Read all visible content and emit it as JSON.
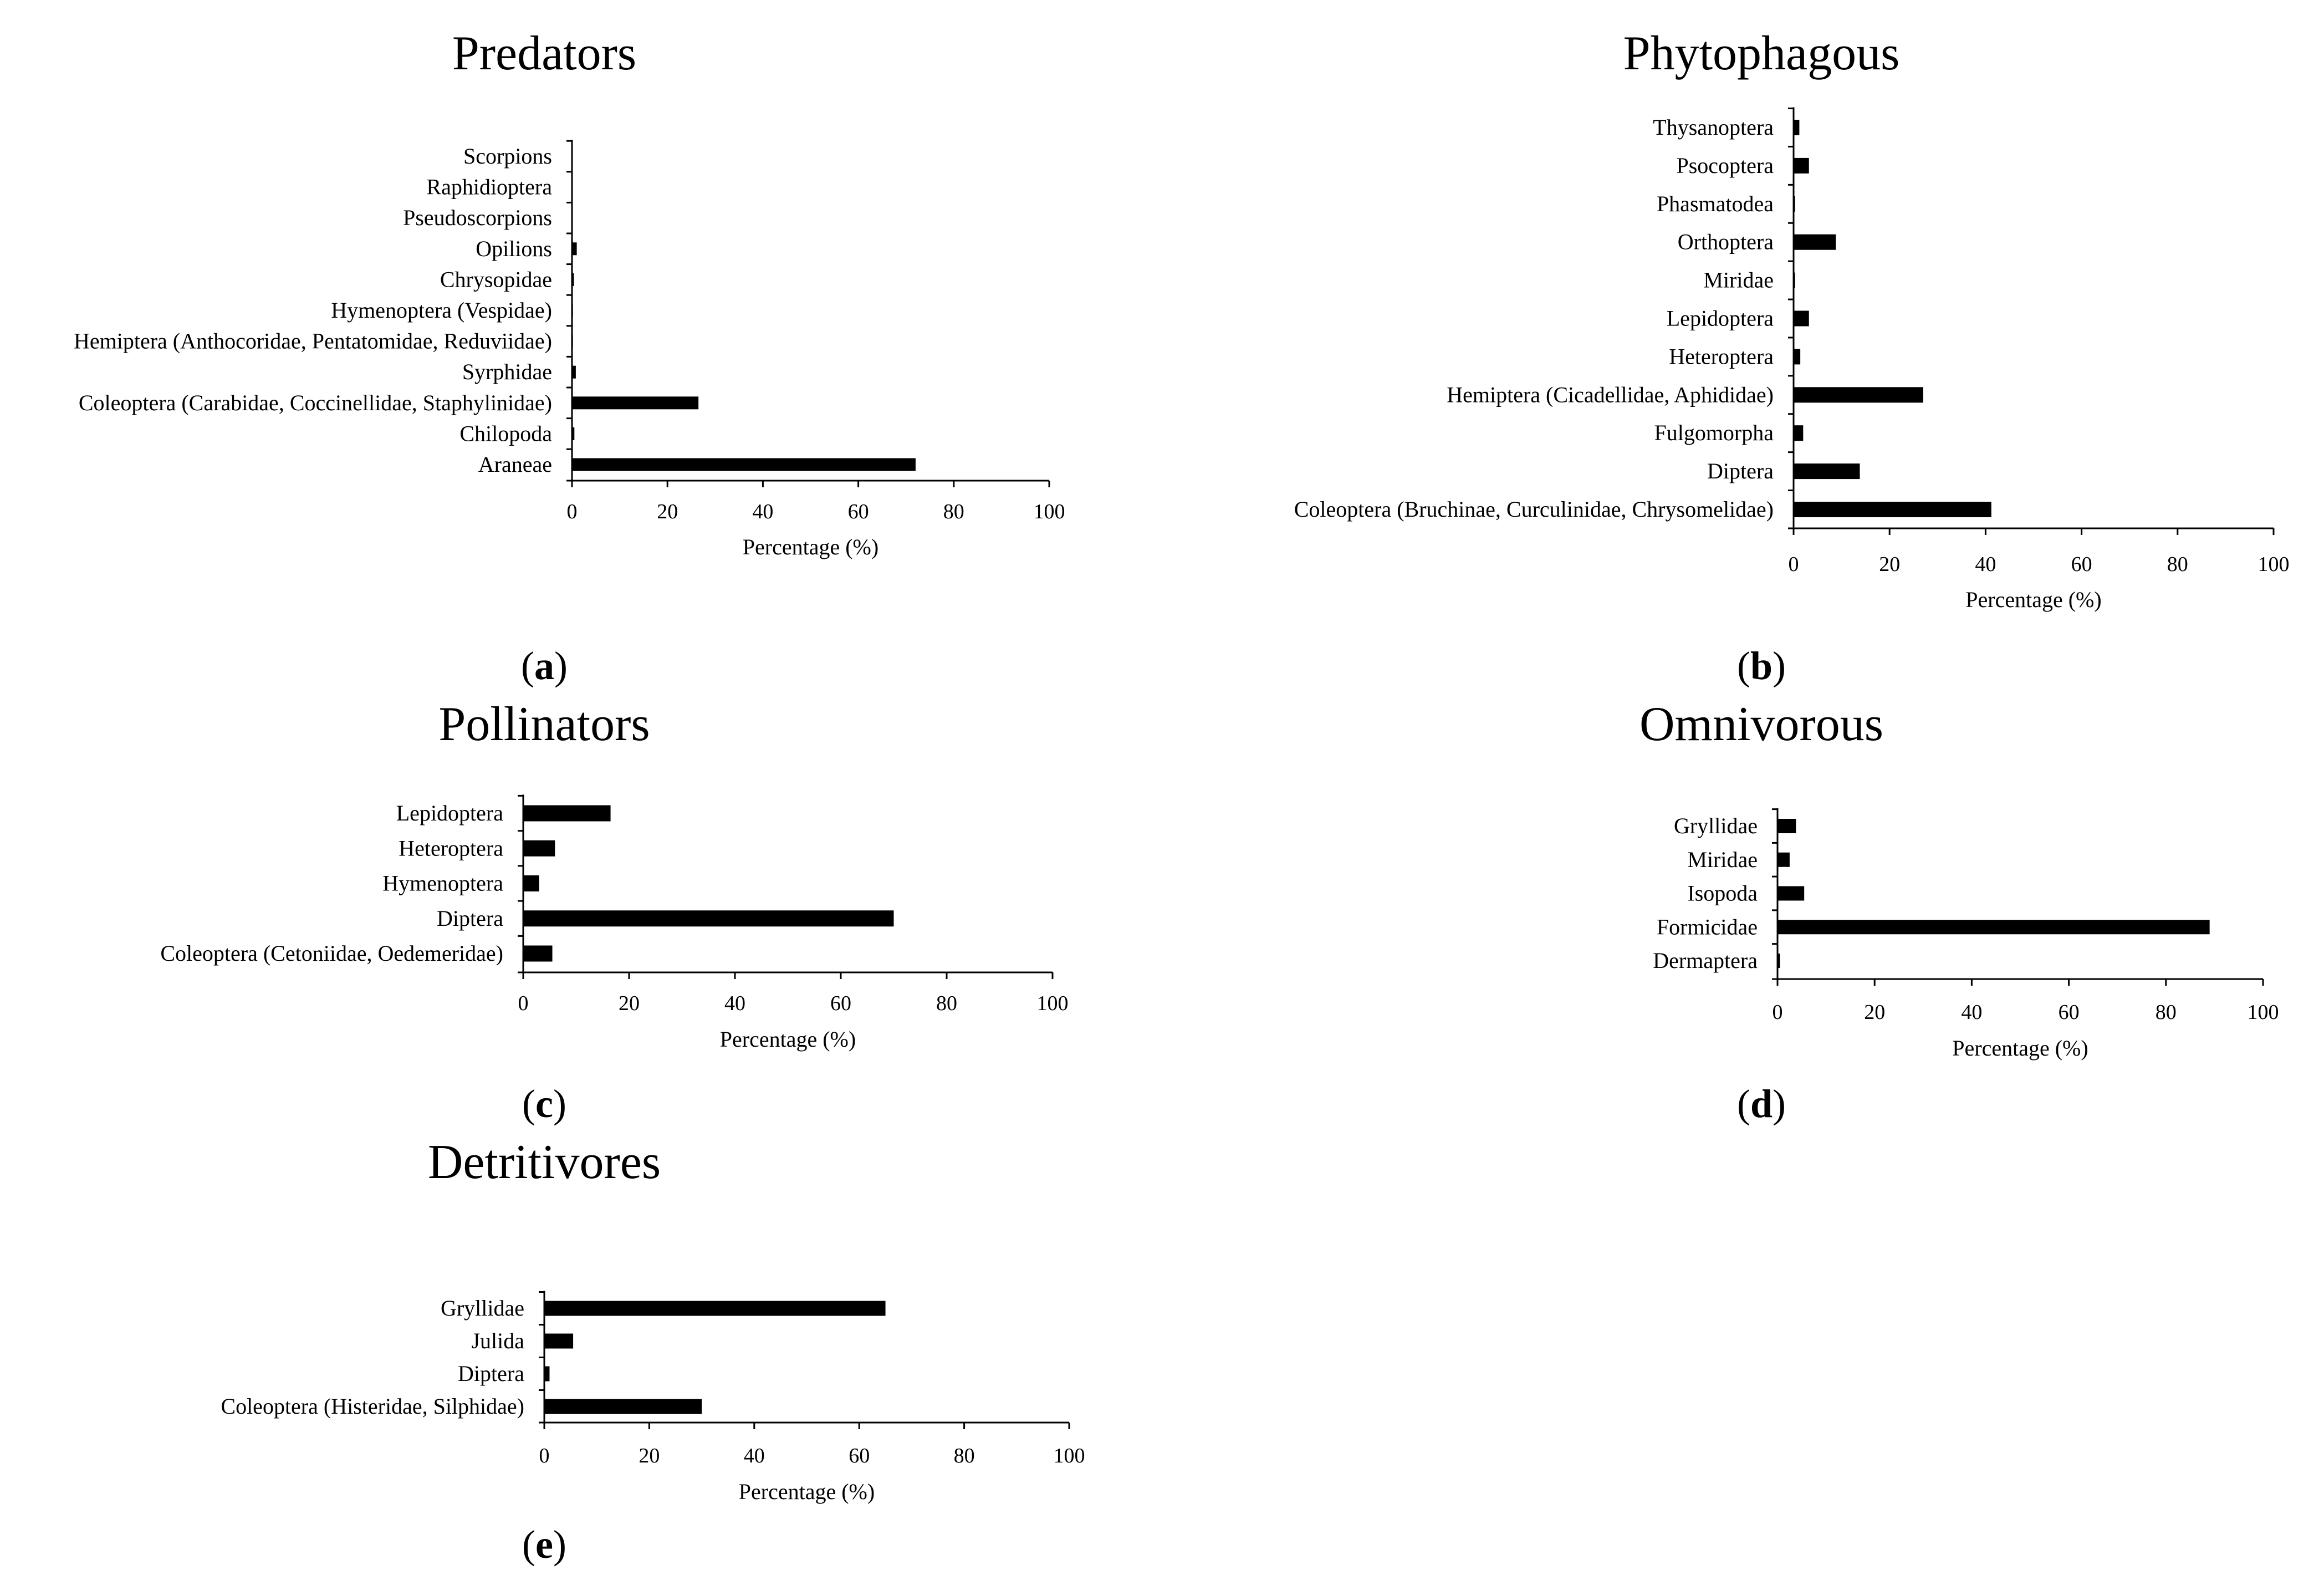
{
  "chart_data": [
    {
      "id": "a",
      "type": "bar",
      "orientation": "horizontal",
      "title": "Predators",
      "panel_label": "a",
      "xlabel": "Percentage (%)",
      "xlim": [
        0,
        100
      ],
      "xticks": [
        "0",
        "20",
        "40",
        "60",
        "80",
        "100"
      ],
      "categories": [
        "Scorpions",
        "Raphidioptera",
        "Pseudoscorpions",
        "Opilions",
        "Chrysopidae",
        "Hymenoptera (Vespidae)",
        "Hemiptera (Anthocoridae, Pentatomidae, Reduviidae)",
        "Syrphidae",
        "Coleoptera (Carabidae, Coccinellidae, Staphylinidae)",
        "Chilopoda",
        "Araneae"
      ],
      "values": [
        0.1,
        0.1,
        0.1,
        1.0,
        0.4,
        0.2,
        0.2,
        0.8,
        26.5,
        0.5,
        72.0
      ]
    },
    {
      "id": "b",
      "type": "bar",
      "orientation": "horizontal",
      "title": "Phytophagous",
      "panel_label": "b",
      "xlabel": "Percentage (%)",
      "xlim": [
        0,
        100
      ],
      "xticks": [
        "0",
        "20",
        "40",
        "60",
        "80",
        "100"
      ],
      "categories": [
        "Thysanoptera",
        "Psocoptera",
        "Phasmatodea",
        "Orthoptera",
        "Miridae",
        "Lepidoptera",
        "Heteroptera",
        "Hemiptera (Cicadellidae, Aphididae)",
        "Fulgomorpha",
        "Diptera",
        "Coleoptera (Bruchinae, Curculinidae, Chrysomelidae)"
      ],
      "values": [
        1.2,
        3.2,
        0.3,
        8.8,
        0.3,
        3.2,
        1.4,
        27.0,
        2.0,
        13.8,
        41.2
      ]
    },
    {
      "id": "c",
      "type": "bar",
      "orientation": "horizontal",
      "title": "Pollinators",
      "panel_label": "c",
      "xlabel": "Percentage (%)",
      "xlim": [
        0,
        100
      ],
      "xticks": [
        "0",
        "20",
        "40",
        "60",
        "80",
        "100"
      ],
      "categories": [
        "Lepidoptera",
        "Heteroptera",
        "Hymenoptera",
        "Diptera",
        "Coleoptera (Cetoniidae, Oedemeridae)"
      ],
      "values": [
        16.5,
        6.0,
        3.0,
        70.0,
        5.5
      ]
    },
    {
      "id": "d",
      "type": "bar",
      "orientation": "horizontal",
      "title": "Omnivorous",
      "panel_label": "d",
      "xlabel": "Percentage (%)",
      "xlim": [
        0,
        100
      ],
      "xticks": [
        "0",
        "20",
        "40",
        "60",
        "80",
        "100"
      ],
      "categories": [
        "Gryllidae",
        "Miridae",
        "Isopoda",
        "Formicidae",
        "Dermaptera"
      ],
      "values": [
        3.8,
        2.5,
        5.5,
        89.0,
        0.5
      ]
    },
    {
      "id": "e",
      "type": "bar",
      "orientation": "horizontal",
      "title": "Detritivores",
      "panel_label": "e",
      "xlabel": "Percentage (%)",
      "xlim": [
        0,
        100
      ],
      "xticks": [
        "0",
        "20",
        "40",
        "60",
        "80",
        "100"
      ],
      "categories": [
        "Gryllidae",
        "Julida",
        "Diptera",
        "Coleoptera (Histeridae, Silphidae)"
      ],
      "values": [
        65.0,
        5.5,
        1.0,
        30.0
      ]
    }
  ]
}
